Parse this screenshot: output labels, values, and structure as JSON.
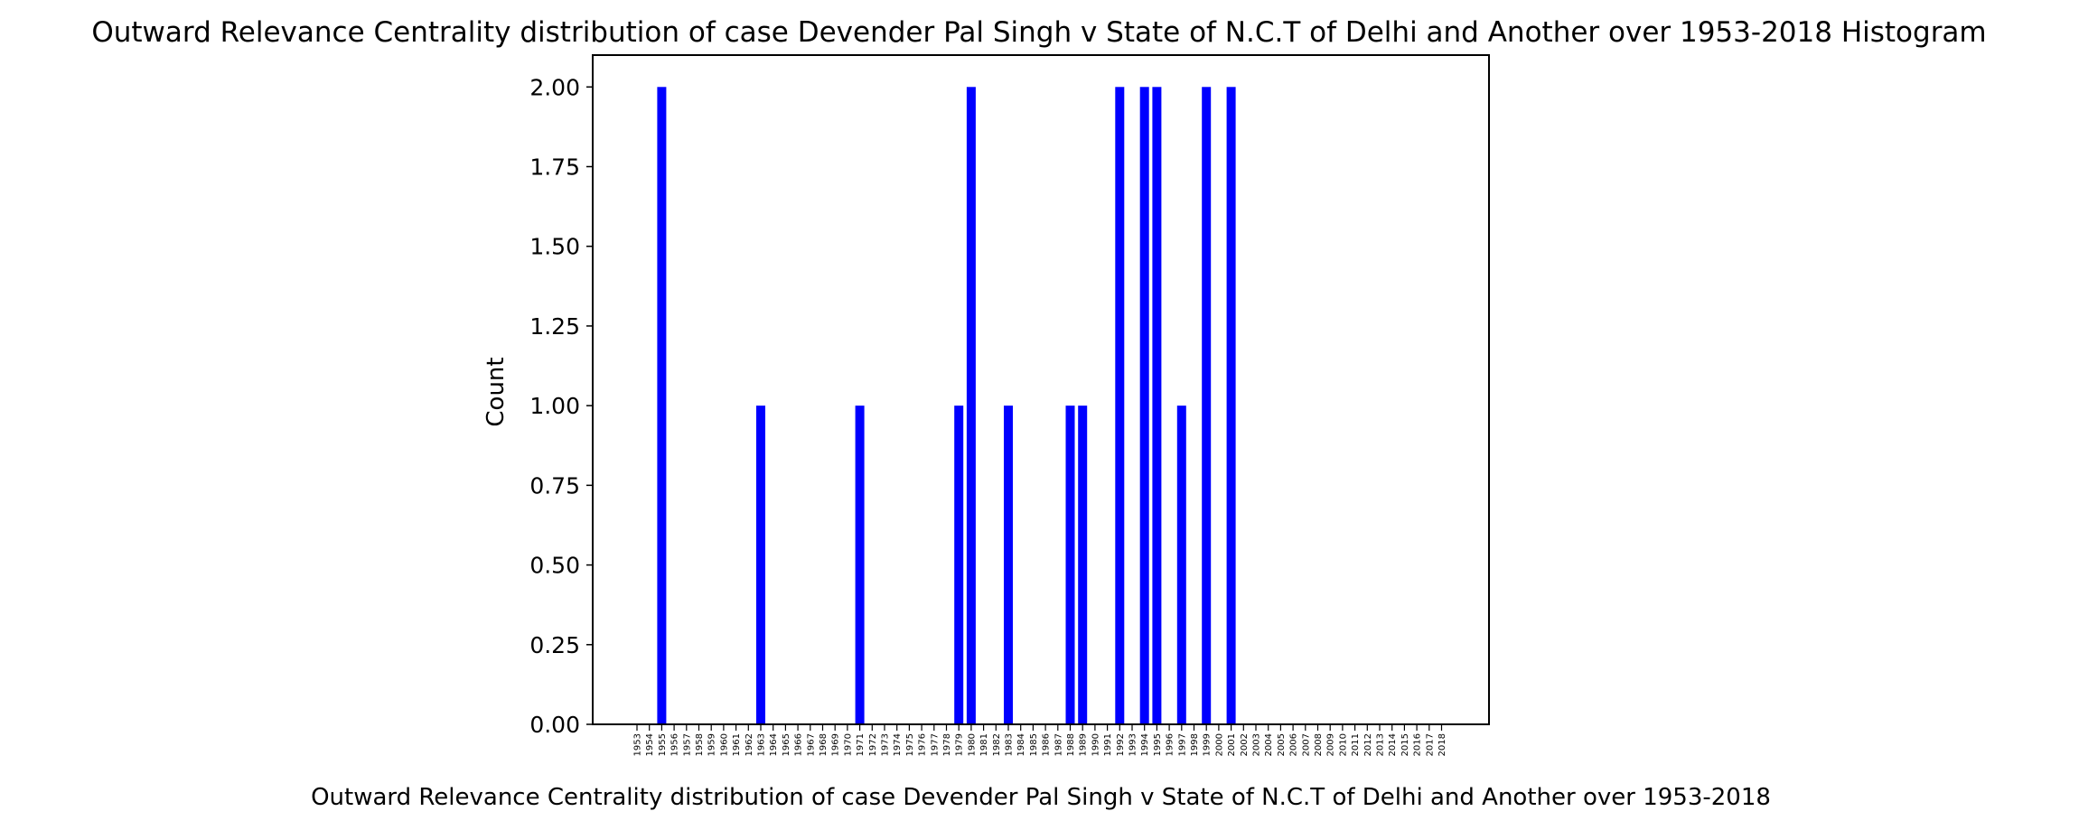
{
  "chart_data": {
    "type": "bar",
    "title": "Outward Relevance Centrality distribution of case Devender Pal Singh v State of N.C.T of Delhi and Another over 1953-2018 Histogram",
    "xlabel": "Outward Relevance Centrality distribution of case Devender Pal Singh v State of N.C.T of Delhi and Another over 1953-2018",
    "ylabel": "Count",
    "ylim": [
      0,
      2.1
    ],
    "yticks": [
      "0.00",
      "0.25",
      "0.50",
      "0.75",
      "1.00",
      "1.25",
      "1.50",
      "1.75",
      "2.00"
    ],
    "grid": false,
    "bar_color": "#0000ff",
    "categories": [
      "1953",
      "1954",
      "1955",
      "1956",
      "1957",
      "1958",
      "1959",
      "1960",
      "1961",
      "1962",
      "1963",
      "1964",
      "1965",
      "1966",
      "1967",
      "1968",
      "1969",
      "1970",
      "1971",
      "1972",
      "1973",
      "1974",
      "1975",
      "1976",
      "1977",
      "1978",
      "1979",
      "1980",
      "1981",
      "1982",
      "1983",
      "1984",
      "1985",
      "1986",
      "1987",
      "1988",
      "1989",
      "1990",
      "1991",
      "1992",
      "1993",
      "1994",
      "1995",
      "1996",
      "1997",
      "1998",
      "1999",
      "2000",
      "2001",
      "2002",
      "2003",
      "2004",
      "2005",
      "2006",
      "2007",
      "2008",
      "2009",
      "2010",
      "2011",
      "2012",
      "2013",
      "2014",
      "2015",
      "2016",
      "2017",
      "2018"
    ],
    "values": [
      0,
      0,
      2,
      0,
      0,
      0,
      0,
      0,
      0,
      0,
      1,
      0,
      0,
      0,
      0,
      0,
      0,
      0,
      1,
      0,
      0,
      0,
      0,
      0,
      0,
      0,
      1,
      2,
      0,
      0,
      1,
      0,
      0,
      0,
      0,
      1,
      1,
      0,
      0,
      2,
      0,
      2,
      2,
      0,
      1,
      0,
      2,
      0,
      2,
      0,
      0,
      0,
      0,
      0,
      0,
      0,
      0,
      0,
      0,
      0,
      0,
      0,
      0,
      0,
      0,
      0
    ]
  }
}
